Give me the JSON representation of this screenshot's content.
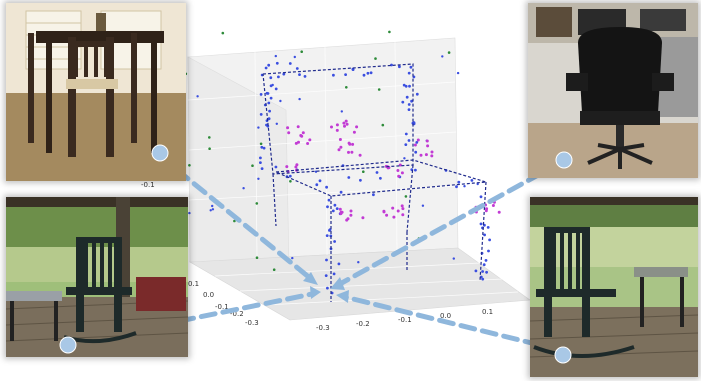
{
  "figure": {
    "photos": [
      {
        "name": "photo-dining-chair",
        "subject": "wooden dining chair at table",
        "anchor": "bottom-right"
      },
      {
        "name": "photo-office-chair",
        "subject": "black office chair",
        "anchor": "bottom-left"
      },
      {
        "name": "photo-porch-rocking-chair-left",
        "subject": "rocking chair on porch",
        "anchor": "bottom-left"
      },
      {
        "name": "photo-porch-rocking-chair-right",
        "subject": "rocking chair on porch",
        "anchor": "bottom-left"
      }
    ],
    "axis_ticks": {
      "x": [
        "-0.3",
        "-0.2",
        "-0.1",
        "0.0",
        "0.1"
      ],
      "y": [
        "0.1",
        "0.0",
        "-0.1",
        "-0.2",
        "-0.3"
      ],
      "z": [
        "-0.1"
      ]
    },
    "colors": {
      "wireframe": "#1f2a8c",
      "points_blue": "#3b4fe0",
      "points_magenta": "#c23bd4",
      "points_green": "#2e8b3a",
      "arrow": "#8fb7dc",
      "arrow_dot": "#a9c8e6"
    }
  }
}
